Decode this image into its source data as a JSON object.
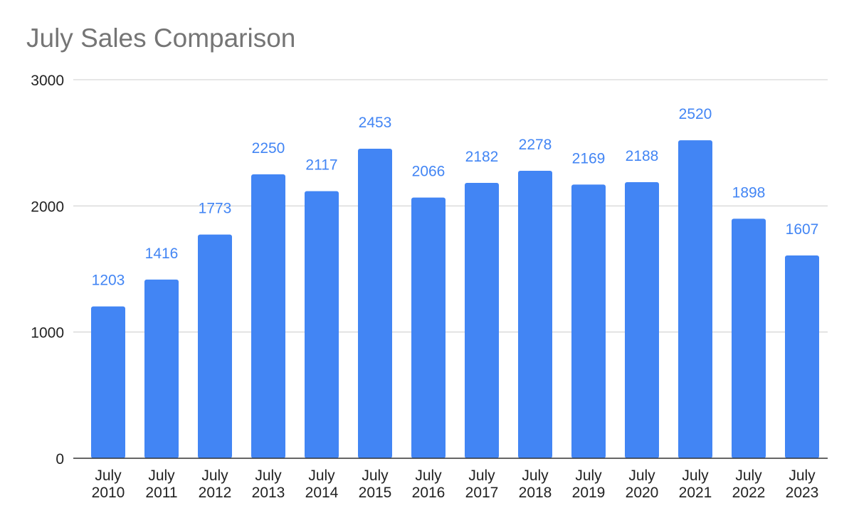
{
  "colors": {
    "bar": "#4285f4",
    "data_label": "#4285f4",
    "grid": "#cccccc",
    "axis": "#333333",
    "title": "#757575"
  },
  "chart_data": {
    "type": "bar",
    "title": "July Sales Comparison",
    "xlabel": "",
    "ylabel": "",
    "ylim": [
      0,
      3000
    ],
    "yticks": [
      0,
      1000,
      2000,
      3000
    ],
    "grid": true,
    "legend": "none",
    "categories": [
      [
        "July",
        "2010"
      ],
      [
        "July",
        "2011"
      ],
      [
        "July",
        "2012"
      ],
      [
        "July",
        "2013"
      ],
      [
        "July",
        "2014"
      ],
      [
        "July",
        "2015"
      ],
      [
        "July",
        "2016"
      ],
      [
        "July",
        "2017"
      ],
      [
        "July",
        "2018"
      ],
      [
        "July",
        "2019"
      ],
      [
        "July",
        "2020"
      ],
      [
        "July",
        "2021"
      ],
      [
        "July",
        "2022"
      ],
      [
        "July",
        "2023"
      ]
    ],
    "values": [
      1203,
      1416,
      1773,
      2250,
      2117,
      2453,
      2066,
      2182,
      2278,
      2169,
      2188,
      2520,
      1898,
      1607
    ]
  }
}
